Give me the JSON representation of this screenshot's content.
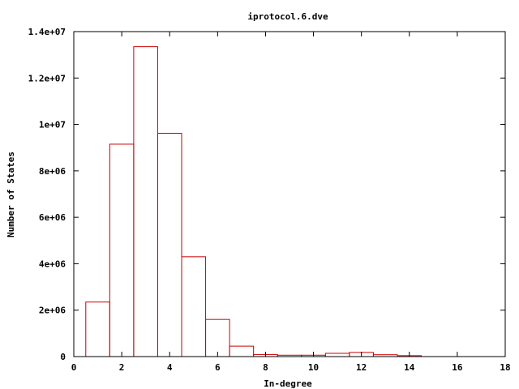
{
  "chart_data": {
    "type": "bar",
    "title": "iprotocol.6.dve",
    "xlabel": "In-degree",
    "ylabel": "Number of States",
    "xlim": [
      0,
      18
    ],
    "ylim": [
      0,
      14000000
    ],
    "xticks": [
      0,
      2,
      4,
      6,
      8,
      10,
      12,
      14,
      16,
      18
    ],
    "xtick_labels": [
      "0",
      "2",
      "4",
      "6",
      "8",
      "10",
      "12",
      "14",
      "16",
      "18"
    ],
    "yticks": [
      0,
      2000000,
      4000000,
      6000000,
      8000000,
      10000000,
      12000000,
      14000000
    ],
    "ytick_labels": [
      "0",
      "2e+06",
      "4e+06",
      "6e+06",
      "8e+06",
      "1e+07",
      "1.2e+07",
      "1.4e+07"
    ],
    "bin_width": 1,
    "x": [
      1,
      2,
      3,
      4,
      5,
      6,
      7,
      8,
      9,
      10,
      11,
      12,
      13,
      14
    ],
    "values": [
      2350000,
      9150000,
      13350000,
      9620000,
      4300000,
      1600000,
      450000,
      90000,
      60000,
      60000,
      140000,
      180000,
      80000,
      40000
    ],
    "legend": "none",
    "grid": false
  },
  "colors": {
    "bar_stroke": "#cc0000",
    "axis": "#000000"
  }
}
